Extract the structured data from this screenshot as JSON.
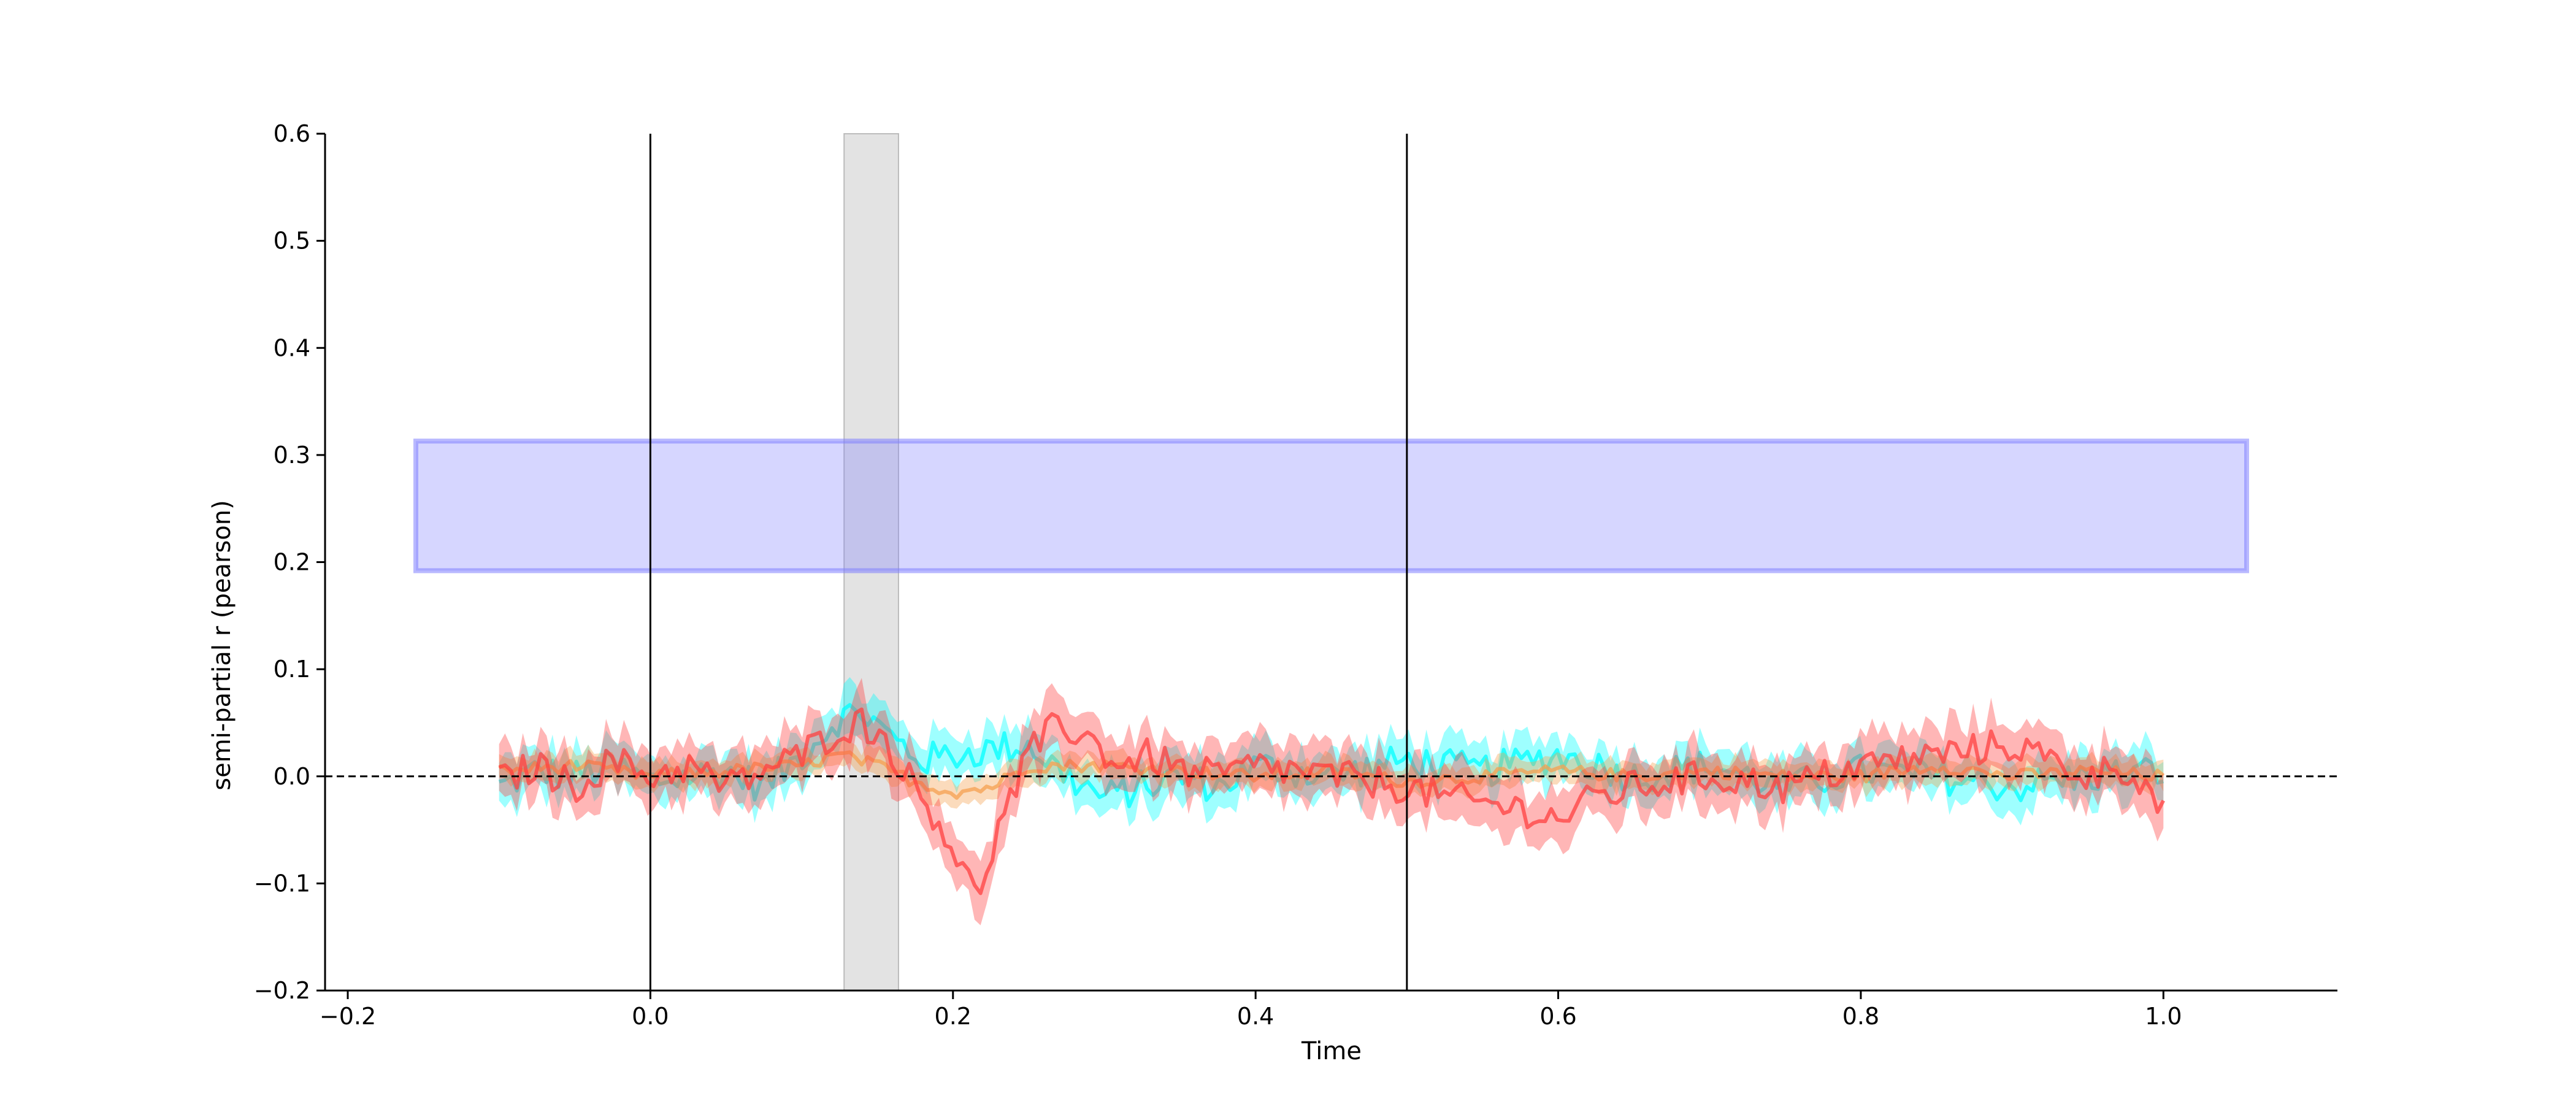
{
  "chart_data": {
    "type": "line",
    "title": "",
    "xlabel": "Time",
    "ylabel": "semi-partial r (pearson)",
    "xlim": [
      -0.215,
      1.115
    ],
    "ylim": [
      -0.2,
      0.6
    ],
    "xticks": [
      -0.2,
      0.0,
      0.2,
      0.4,
      0.6,
      0.8,
      1.0
    ],
    "xtick_labels": [
      "−0.2",
      "0.0",
      "0.2",
      "0.4",
      "0.6",
      "0.8",
      "1.0"
    ],
    "yticks": [
      -0.2,
      -0.1,
      0.0,
      0.1,
      0.2,
      0.3,
      0.4,
      0.5,
      0.6
    ],
    "ytick_labels": [
      "−0.2",
      "−0.1",
      "0.0",
      "0.1",
      "0.2",
      "0.3",
      "0.4",
      "0.5",
      "0.6"
    ],
    "grid": false,
    "legend": "none",
    "vertical_lines": [
      0.0,
      0.5
    ],
    "zero_line": 0.0,
    "shaded_span": {
      "x0": 0.128,
      "x1": 0.164,
      "color": "#cccccc"
    },
    "highlight_band": {
      "x0": -0.155,
      "x1": 1.055,
      "y0": 0.192,
      "y1": 0.313,
      "color": "#8080ff"
    },
    "series": [
      {
        "color": "#00ffff",
        "x": [
          -0.1,
          -0.075,
          -0.05,
          -0.025,
          0.0,
          0.025,
          0.05,
          0.075,
          0.1,
          0.125,
          0.14,
          0.16,
          0.18,
          0.2,
          0.225,
          0.25,
          0.275,
          0.3,
          0.325,
          0.35,
          0.375,
          0.4,
          0.45,
          0.5,
          0.55,
          0.6,
          0.65,
          0.7,
          0.75,
          0.8,
          0.85,
          0.9,
          0.95,
          1.0
        ],
        "y": [
          -0.01,
          0.005,
          0.0,
          0.01,
          -0.005,
          0.0,
          0.005,
          -0.01,
          0.02,
          0.055,
          0.06,
          0.035,
          0.015,
          0.02,
          0.025,
          0.03,
          0.0,
          -0.02,
          -0.01,
          0.0,
          -0.01,
          0.01,
          0.0,
          0.015,
          0.005,
          0.02,
          0.0,
          0.01,
          -0.01,
          0.005,
          0.0,
          -0.01,
          0.0,
          0.005
        ],
        "ci": 0.02
      },
      {
        "color": "#f5a050",
        "x": [
          -0.1,
          -0.05,
          0.0,
          0.05,
          0.1,
          0.125,
          0.15,
          0.175,
          0.2,
          0.225,
          0.25,
          0.3,
          0.35,
          0.4,
          0.45,
          0.5,
          0.55,
          0.6,
          0.65,
          0.7,
          0.75,
          0.8,
          0.85,
          0.9,
          0.95,
          1.0
        ],
        "y": [
          0.005,
          0.01,
          0.0,
          0.005,
          0.01,
          0.02,
          0.01,
          -0.005,
          -0.015,
          -0.01,
          0.01,
          0.01,
          0.005,
          0.0,
          0.005,
          -0.005,
          0.0,
          0.005,
          0.0,
          0.005,
          0.0,
          0.0,
          0.01,
          0.0,
          0.005,
          0.0
        ],
        "ci": 0.012
      },
      {
        "color": "#ff4040",
        "x": [
          -0.1,
          -0.075,
          -0.05,
          -0.025,
          0.0,
          0.025,
          0.05,
          0.075,
          0.1,
          0.125,
          0.14,
          0.155,
          0.17,
          0.19,
          0.205,
          0.215,
          0.23,
          0.25,
          0.27,
          0.29,
          0.31,
          0.33,
          0.35,
          0.375,
          0.4,
          0.45,
          0.5,
          0.525,
          0.55,
          0.575,
          0.6,
          0.625,
          0.65,
          0.7,
          0.75,
          0.8,
          0.85,
          0.9,
          0.95,
          0.975,
          1.0
        ],
        "y": [
          -0.005,
          0.01,
          -0.01,
          0.015,
          0.0,
          0.01,
          -0.01,
          0.005,
          0.02,
          0.045,
          0.05,
          0.035,
          0.0,
          -0.04,
          -0.08,
          -0.115,
          -0.05,
          0.02,
          0.05,
          0.035,
          0.01,
          0.02,
          0.005,
          0.0,
          0.01,
          0.0,
          -0.01,
          -0.02,
          -0.025,
          -0.03,
          -0.04,
          -0.02,
          -0.01,
          0.0,
          -0.01,
          0.01,
          0.02,
          0.03,
          0.0,
          0.01,
          -0.03
        ],
        "ci": 0.025
      }
    ]
  }
}
